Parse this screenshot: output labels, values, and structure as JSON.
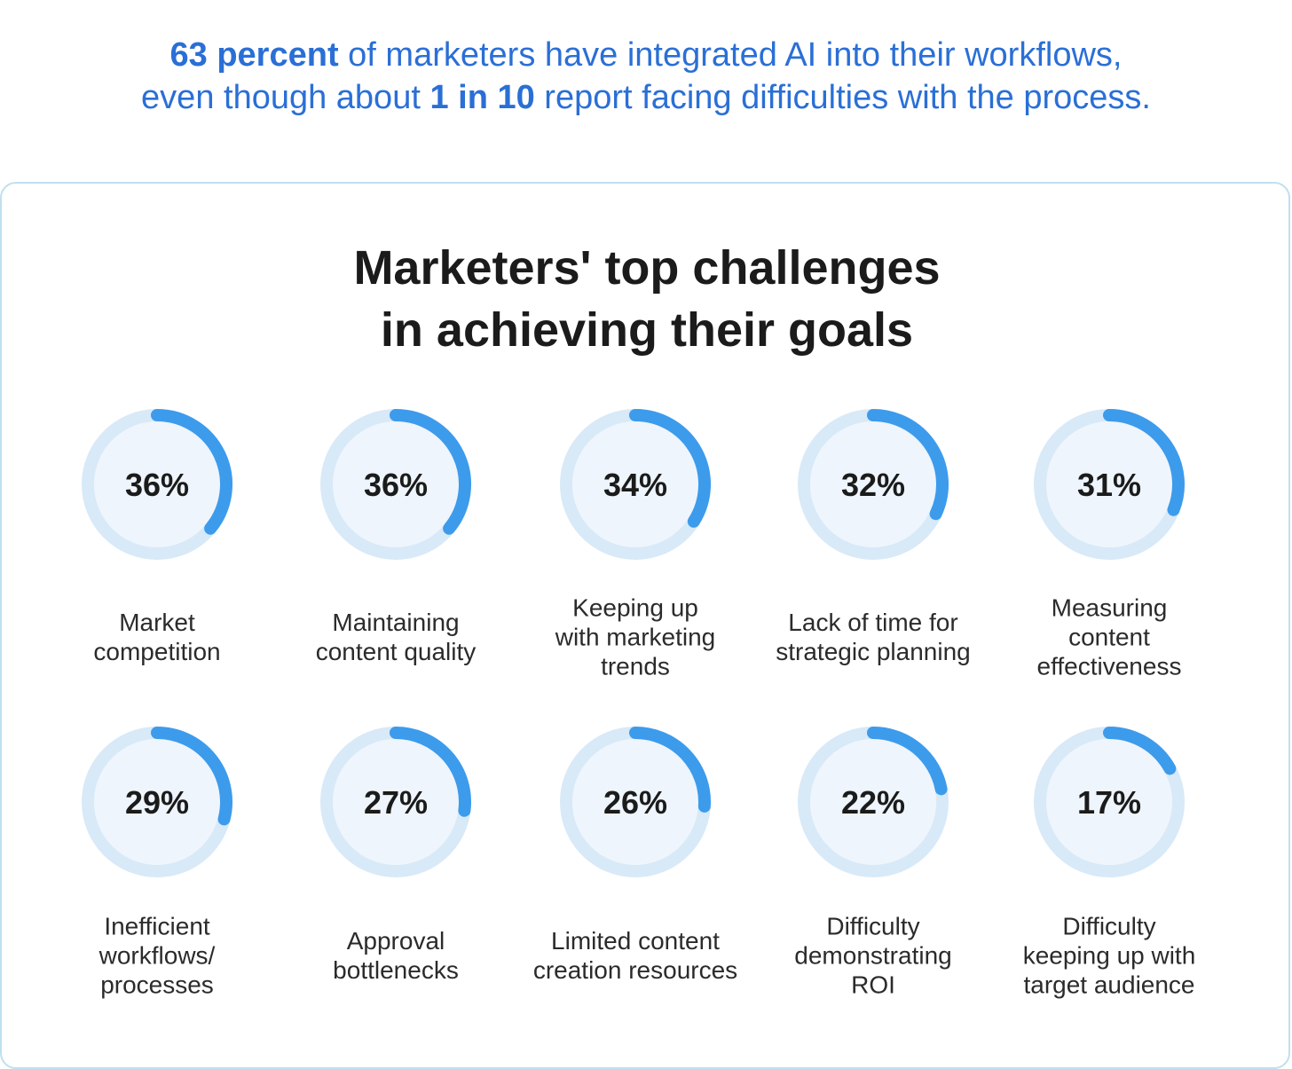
{
  "headline": {
    "line1_bold": "63 percent",
    "line1_rest": " of marketers have integrated AI into their workflows,",
    "line2_start": "even though about ",
    "line2_bold": "1 in 10",
    "line2_end": " report facing difficulties with the process."
  },
  "colors": {
    "headline_text": "#2a6fd6",
    "ring_track": "#d8e9f8",
    "ring_inner": "#eef5fc",
    "ring_arc": "#3d9bec",
    "card_border": "#bfe0ee"
  },
  "chart_data": {
    "type": "progress-ring",
    "title_line1": "Marketers' top challenges",
    "title_line2": "in achieving their goals",
    "unit": "%",
    "items": [
      {
        "label": "Market\ncompetition",
        "value": 36
      },
      {
        "label": "Maintaining\ncontent quality",
        "value": 36
      },
      {
        "label": "Keeping up\nwith marketing\ntrends",
        "value": 34
      },
      {
        "label": "Lack of time for\nstrategic planning",
        "value": 32
      },
      {
        "label": "Measuring\ncontent\neffectiveness",
        "value": 31
      },
      {
        "label": "Inefficient\nworkflows/\nprocesses",
        "value": 29
      },
      {
        "label": "Approval\nbottlenecks",
        "value": 27
      },
      {
        "label": "Limited content\ncreation resources",
        "value": 26
      },
      {
        "label": "Difficulty\ndemonstrating\nROI",
        "value": 22
      },
      {
        "label": "Difficulty\nkeeping up with\ntarget audience",
        "value": 17
      }
    ]
  }
}
